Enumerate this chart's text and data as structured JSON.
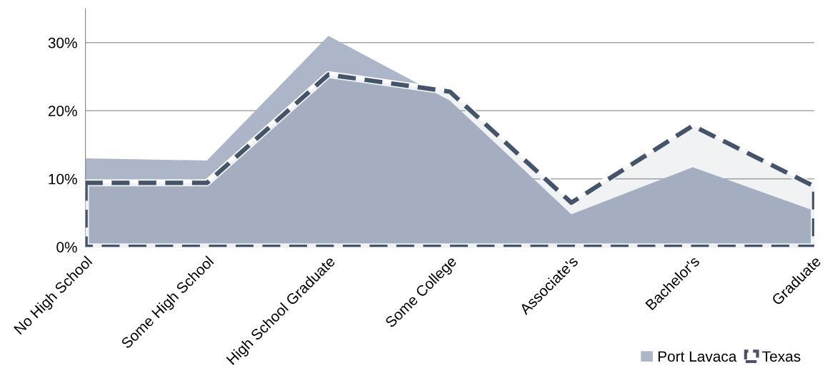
{
  "chart_data": {
    "type": "area",
    "categories": [
      "No High School",
      "Some High School",
      "High School Graduate",
      "Some College",
      "Associate's",
      "Bachelor's",
      "Graduate"
    ],
    "series": [
      {
        "name": "Port Lavaca",
        "color": "#adb6c8",
        "values": [
          13.0,
          12.7,
          31.0,
          21.5,
          4.8,
          11.7,
          5.3
        ]
      },
      {
        "name": "Texas",
        "color": "#44546a",
        "line_style": "dashed",
        "values": [
          9.4,
          9.4,
          25.3,
          22.8,
          6.5,
          17.8,
          8.9
        ]
      }
    ],
    "ylim": [
      0,
      35
    ],
    "yticks": [
      {
        "value": 0,
        "label": "0%"
      },
      {
        "value": 10,
        "label": "10%"
      },
      {
        "value": 20,
        "label": "20%"
      },
      {
        "value": 30,
        "label": "30%"
      }
    ],
    "grid": "y",
    "legend": "bottom right"
  }
}
